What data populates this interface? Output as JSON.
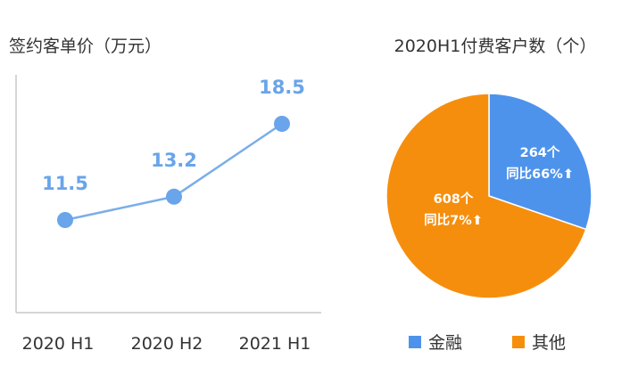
{
  "colors": {
    "line": "#7aaee8",
    "point": "#6aa4ea",
    "label": "#6aa4ea",
    "axis": "#d6d6d6",
    "finance": "#4d93ec",
    "other": "#f68e0d"
  },
  "chart_data": [
    {
      "type": "line",
      "title": "签约客单价（万元）",
      "categories": [
        "2020 H1",
        "2020 H2",
        "2021 H1"
      ],
      "series": [
        {
          "values": [
            11.5,
            13.2,
            18.5
          ],
          "labels": [
            "11.5",
            "13.2",
            "18.5"
          ]
        }
      ],
      "grid": false
    },
    {
      "type": "pie",
      "title": "2020H1付费客户数（个）",
      "slices": [
        {
          "name": "金融",
          "value": 264,
          "label_line1": "264个",
          "label_line2": "同比66%",
          "arrow": "⬆"
        },
        {
          "name": "其他",
          "value": 608,
          "label_line1": "608个",
          "label_line2": "同比7%",
          "arrow": "⬆"
        }
      ],
      "legend": "bottom"
    }
  ]
}
